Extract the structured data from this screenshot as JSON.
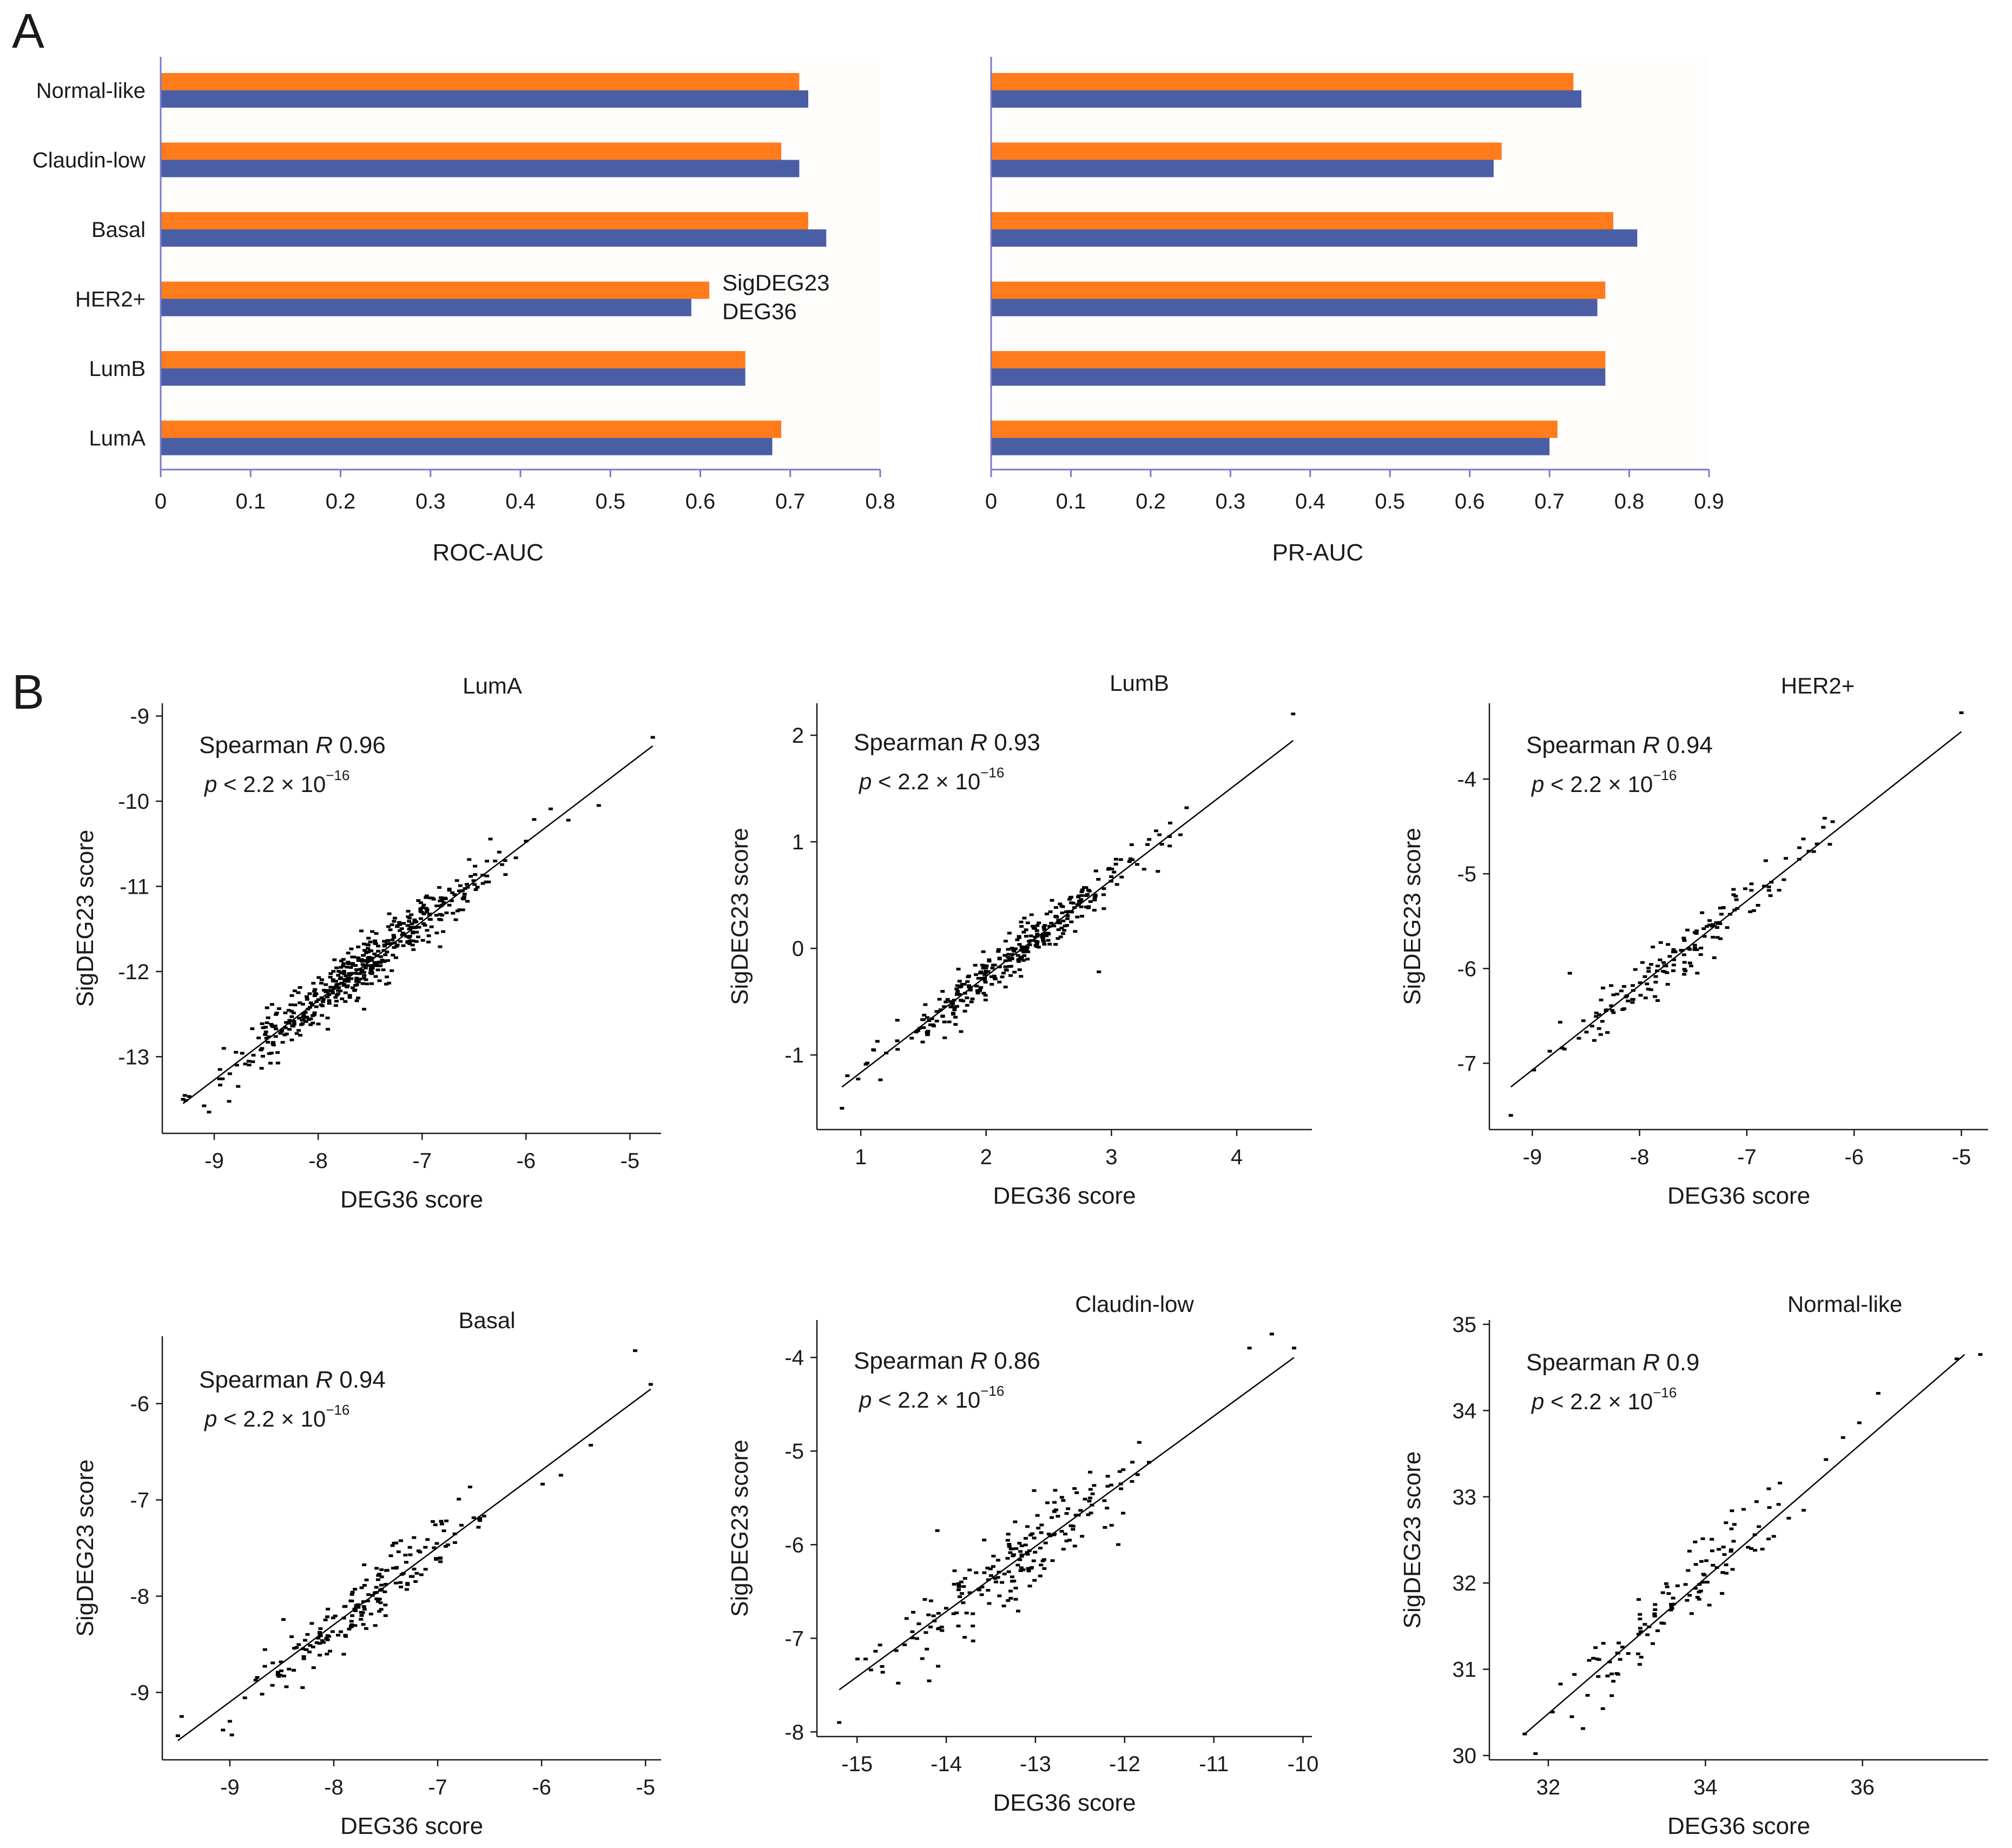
{
  "panel_labels": {
    "a": "A",
    "b": "B"
  },
  "colors": {
    "sigdeg23": "#ff7b1c",
    "deg36": "#4a5ea6",
    "axis_a": "#7a7acb",
    "plot_bg": "#fffdfb",
    "point": "#000000"
  },
  "chart_data": [
    {
      "type": "bar",
      "orientation": "horizontal",
      "categories": [
        "Normal-like",
        "Claudin-low",
        "Basal",
        "HER2+",
        "LumB",
        "LumA"
      ],
      "series": [
        {
          "name": "SigDEG23",
          "values": [
            0.71,
            0.69,
            0.72,
            0.61,
            0.65,
            0.69
          ]
        },
        {
          "name": "DEG36",
          "values": [
            0.72,
            0.71,
            0.74,
            0.59,
            0.65,
            0.68
          ]
        }
      ],
      "xlabel": "ROC-AUC",
      "xlim": [
        0,
        0.8
      ],
      "xticks": [
        "0",
        "0.1",
        "0.2",
        "0.3",
        "0.4",
        "0.5",
        "0.6",
        "0.7",
        "0.8"
      ],
      "legend": [
        "SigDEG23",
        "DEG36"
      ],
      "legend_position": "inside, right of HER2+ bars"
    },
    {
      "type": "bar",
      "orientation": "horizontal",
      "categories": [
        "Normal-like",
        "Claudin-low",
        "Basal",
        "HER2+",
        "LumB",
        "LumA"
      ],
      "series": [
        {
          "name": "SigDEG23",
          "values": [
            0.73,
            0.64,
            0.78,
            0.77,
            0.77,
            0.71
          ]
        },
        {
          "name": "DEG36",
          "values": [
            0.74,
            0.63,
            0.81,
            0.76,
            0.77,
            0.7
          ]
        }
      ],
      "xlabel": "PR-AUC",
      "xlim": [
        0,
        0.9
      ],
      "xticks": [
        "0",
        "0.1",
        "0.2",
        "0.3",
        "0.4",
        "0.5",
        "0.6",
        "0.7",
        "0.8",
        "0.9"
      ]
    },
    {
      "type": "scatter",
      "title": "LumA",
      "xlabel": "DEG36 score",
      "ylabel": "SigDEG23 score",
      "xlim": [
        -9.5,
        -4.7
      ],
      "ylim": [
        -13.9,
        -8.85
      ],
      "xticks": [
        -9,
        -8,
        -7,
        -6,
        -5
      ],
      "yticks": [
        -13,
        -12,
        -11,
        -10,
        -9
      ],
      "stat_label": "Spearman ",
      "stat_var": "R",
      "stat_value": "0.96",
      "p_var": "p",
      "p_text": " < 2.2 × 10",
      "p_exp": "−16",
      "n_points": 480,
      "fit_line": [
        [
          -9.3,
          -13.55
        ],
        [
          -4.78,
          -9.35
        ]
      ],
      "outliers": [
        [
          -4.78,
          -9.25
        ],
        [
          -9.05,
          -13.65
        ],
        [
          -9.3,
          -13.5
        ],
        [
          -5.3,
          -10.05
        ],
        [
          -8.85,
          -13.2
        ]
      ]
    },
    {
      "type": "scatter",
      "title": "LumB",
      "xlabel": "DEG36 score",
      "ylabel": "SigDEG23 score",
      "xlim": [
        0.65,
        4.6
      ],
      "ylim": [
        -1.7,
        2.3
      ],
      "xticks": [
        1,
        2,
        3,
        4
      ],
      "yticks": [
        -1,
        0,
        1,
        2
      ],
      "stat_label": "Spearman ",
      "stat_var": "R",
      "stat_value": "0.93",
      "p_var": "p",
      "p_text": " < 2.2 × 10",
      "p_exp": "−16",
      "n_points": 330,
      "fit_line": [
        [
          0.85,
          -1.3
        ],
        [
          4.45,
          1.95
        ]
      ],
      "outliers": [
        [
          4.45,
          2.2
        ],
        [
          0.85,
          -1.5
        ],
        [
          3.6,
          1.32
        ],
        [
          2.9,
          -0.22
        ],
        [
          1.1,
          -0.95
        ]
      ]
    },
    {
      "type": "scatter",
      "title": "HER2+",
      "xlabel": "DEG36 score",
      "ylabel": "SigDEG23 score",
      "xlim": [
        -9.4,
        -4.75
      ],
      "ylim": [
        -7.7,
        -3.2
      ],
      "xticks": [
        -9,
        -8,
        -7,
        -6,
        -5
      ],
      "yticks": [
        -7,
        -6,
        -5,
        -4
      ],
      "stat_label": "Spearman ",
      "stat_var": "R",
      "stat_value": "0.94",
      "p_var": "p",
      "p_text": " < 2.2 × 10",
      "p_exp": "−16",
      "n_points": 150,
      "fit_line": [
        [
          -9.2,
          -7.25
        ],
        [
          -5.0,
          -3.5
        ]
      ],
      "outliers": [
        [
          -5.0,
          -3.3
        ],
        [
          -9.2,
          -7.55
        ],
        [
          -8.65,
          -6.05
        ],
        [
          -6.2,
          -4.45
        ],
        [
          -8.7,
          -6.85
        ]
      ]
    },
    {
      "type": "scatter",
      "title": "Basal",
      "xlabel": "DEG36 score",
      "ylabel": "SigDEG23 score",
      "xlim": [
        -9.65,
        -4.85
      ],
      "ylim": [
        -9.7,
        -5.3
      ],
      "xticks": [
        -9,
        -8,
        -7,
        -6,
        -5
      ],
      "yticks": [
        -9,
        -8,
        -7,
        -6
      ],
      "stat_label": "Spearman ",
      "stat_var": "R",
      "stat_value": "0.94",
      "p_var": "p",
      "p_text": " < 2.2 × 10",
      "p_exp": "−16",
      "n_points": 190,
      "fit_line": [
        [
          -9.5,
          -9.5
        ],
        [
          -4.95,
          -5.85
        ]
      ],
      "outliers": [
        [
          -5.1,
          -5.45
        ],
        [
          -4.95,
          -5.8
        ],
        [
          -9.5,
          -9.45
        ],
        [
          -9.0,
          -9.3
        ],
        [
          -8.3,
          -8.95
        ]
      ]
    },
    {
      "type": "scatter",
      "title": "Claudin-low",
      "xlabel": "DEG36 score",
      "ylabel": "SigDEG23 score",
      "xlim": [
        -15.45,
        -9.9
      ],
      "ylim": [
        -8.05,
        -3.6
      ],
      "xticks": [
        -15,
        -14,
        -13,
        -12,
        -11,
        -10
      ],
      "yticks": [
        -8,
        -7,
        -6,
        -5,
        -4
      ],
      "stat_label": "Spearman ",
      "stat_var": "R",
      "stat_value": "0.86",
      "p_var": "p",
      "p_text": " < 2.2 × 10",
      "p_exp": "−16",
      "n_points": 200,
      "fit_line": [
        [
          -15.2,
          -7.55
        ],
        [
          -10.1,
          -4.0
        ]
      ],
      "outliers": [
        [
          -10.35,
          -3.75
        ],
        [
          -10.1,
          -3.9
        ],
        [
          -15.2,
          -7.9
        ],
        [
          -10.6,
          -3.9
        ],
        [
          -14.1,
          -5.85
        ]
      ]
    },
    {
      "type": "scatter",
      "title": "Normal-like",
      "xlabel": "DEG36 score",
      "ylabel": "SigDEG23 score",
      "xlim": [
        31.25,
        37.6
      ],
      "ylim": [
        29.95,
        35.05
      ],
      "xticks": [
        32,
        34,
        36
      ],
      "yticks": [
        30,
        31,
        32,
        33,
        34,
        35
      ],
      "stat_label": "Spearman ",
      "stat_var": "R",
      "stat_value": "0.9",
      "p_var": "p",
      "p_text": " < 2.2 × 10",
      "p_exp": "−16",
      "n_points": 120,
      "fit_line": [
        [
          31.7,
          30.25
        ],
        [
          37.3,
          34.65
        ]
      ],
      "outliers": [
        [
          37.5,
          34.65
        ],
        [
          31.7,
          30.25
        ],
        [
          32.3,
          30.45
        ],
        [
          36.2,
          34.2
        ],
        [
          37.2,
          34.6
        ]
      ]
    }
  ]
}
